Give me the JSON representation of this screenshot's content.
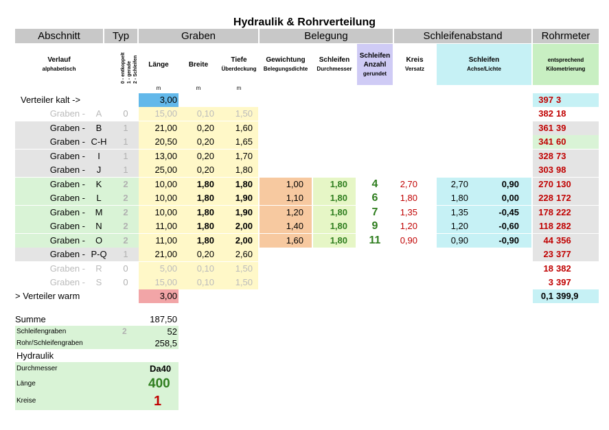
{
  "title": "Hydraulik & Rohrverteilung",
  "groups": {
    "abschnitt": "Abschnitt",
    "typ": "Typ",
    "graben": "Graben",
    "belegung": "Belegung",
    "schleifenabstand": "Schleifenabstand",
    "rohrmeter": "Rohrmeter"
  },
  "subheaders": {
    "verlauf": "Verlauf",
    "verlauf_sub": "alphabetisch",
    "typ_lines": [
      "0 - entkoppelt",
      "1 - gerade",
      "2 - Schleifen"
    ],
    "laenge": "Länge",
    "breite": "Breite",
    "tiefe": "Tiefe",
    "tiefe_sub": "Überdeckung",
    "gewichtung": "Gewichtung",
    "gewichtung_sub": "Belegungsdichte",
    "schleifen": "Schleifen",
    "schleifen_sub": "Durchmesser",
    "anzahl_1": "Schleifen",
    "anzahl_2": "Anzahl",
    "anzahl_sub": "gerundet",
    "kreis": "Kreis",
    "kreis_sub": "Versatz",
    "achse": "Schleifen",
    "achse_sub": "Achse/Lichte",
    "rohr_1": "entsprechend",
    "rohr_2": "Kilometrierung"
  },
  "units": {
    "laenge": "m",
    "breite": "m",
    "tiefe": "m"
  },
  "verteiler_kalt": {
    "label": "Verteiler kalt ->",
    "laenge": "3,00",
    "rohr_a": "397",
    "rohr_b": "3"
  },
  "rows": [
    {
      "label": "Graben -",
      "id": "A",
      "typ": "0",
      "laenge": "15,00",
      "breite": "0,10",
      "tiefe": "1,50",
      "gew": "",
      "schl": "",
      "anz": "",
      "kreis": "",
      "achse": "",
      "lichte": "",
      "rohr_a": "382",
      "rohr_b": "18"
    },
    {
      "label": "Graben -",
      "id": "B",
      "typ": "1",
      "laenge": "21,00",
      "breite": "0,20",
      "tiefe": "1,60",
      "gew": "",
      "schl": "",
      "anz": "",
      "kreis": "",
      "achse": "",
      "lichte": "",
      "rohr_a": "361",
      "rohr_b": "39"
    },
    {
      "label": "Graben -",
      "id": "C-H",
      "typ": "1",
      "laenge": "20,50",
      "breite": "0,20",
      "tiefe": "1,65",
      "gew": "",
      "schl": "",
      "anz": "",
      "kreis": "",
      "achse": "",
      "lichte": "",
      "rohr_a": "341",
      "rohr_b": "60"
    },
    {
      "label": "Graben -",
      "id": "I",
      "typ": "1",
      "laenge": "13,00",
      "breite": "0,20",
      "tiefe": "1,70",
      "gew": "",
      "schl": "",
      "anz": "",
      "kreis": "",
      "achse": "",
      "lichte": "",
      "rohr_a": "328",
      "rohr_b": "73"
    },
    {
      "label": "Graben -",
      "id": "J",
      "typ": "1",
      "laenge": "25,00",
      "breite": "0,20",
      "tiefe": "1,80",
      "gew": "",
      "schl": "",
      "anz": "",
      "kreis": "",
      "achse": "",
      "lichte": "",
      "rohr_a": "303",
      "rohr_b": "98"
    },
    {
      "label": "Graben -",
      "id": "K",
      "typ": "2",
      "laenge": "10,00",
      "breite": "1,80",
      "tiefe": "1,80",
      "gew": "1,00",
      "schl": "1,80",
      "anz": "4",
      "kreis": "2,70",
      "achse": "2,70",
      "lichte": "0,90",
      "rohr_a": "270",
      "rohr_b": "130"
    },
    {
      "label": "Graben -",
      "id": "L",
      "typ": "2",
      "laenge": "10,00",
      "breite": "1,80",
      "tiefe": "1,90",
      "gew": "1,10",
      "schl": "1,80",
      "anz": "6",
      "kreis": "1,80",
      "achse": "1,80",
      "lichte": "0,00",
      "rohr_a": "228",
      "rohr_b": "172"
    },
    {
      "label": "Graben -",
      "id": "M",
      "typ": "2",
      "laenge": "10,00",
      "breite": "1,80",
      "tiefe": "1,90",
      "gew": "1,20",
      "schl": "1,80",
      "anz": "7",
      "kreis": "1,35",
      "achse": "1,35",
      "lichte": "-0,45",
      "rohr_a": "178",
      "rohr_b": "222"
    },
    {
      "label": "Graben -",
      "id": "N",
      "typ": "2",
      "laenge": "11,00",
      "breite": "1,80",
      "tiefe": "2,00",
      "gew": "1,40",
      "schl": "1,80",
      "anz": "9",
      "kreis": "1,20",
      "achse": "1,20",
      "lichte": "-0,60",
      "rohr_a": "118",
      "rohr_b": "282"
    },
    {
      "label": "Graben -",
      "id": "O",
      "typ": "2",
      "laenge": "11,00",
      "breite": "1,80",
      "tiefe": "2,00",
      "gew": "1,60",
      "schl": "1,80",
      "anz": "11",
      "kreis": "0,90",
      "achse": "0,90",
      "lichte": "-0,90",
      "rohr_a": "44",
      "rohr_b": "356"
    },
    {
      "label": "Graben -",
      "id": "P-Q",
      "typ": "1",
      "laenge": "21,00",
      "breite": "0,20",
      "tiefe": "2,60",
      "gew": "",
      "schl": "",
      "anz": "",
      "kreis": "",
      "achse": "",
      "lichte": "",
      "rohr_a": "23",
      "rohr_b": "377"
    },
    {
      "label": "Graben -",
      "id": "R",
      "typ": "0",
      "laenge": "5,00",
      "breite": "0,10",
      "tiefe": "1,50",
      "gew": "",
      "schl": "",
      "anz": "",
      "kreis": "",
      "achse": "",
      "lichte": "",
      "rohr_a": "18",
      "rohr_b": "382"
    },
    {
      "label": "Graben -",
      "id": "S",
      "typ": "0",
      "laenge": "15,00",
      "breite": "0,10",
      "tiefe": "1,50",
      "gew": "",
      "schl": "",
      "anz": "",
      "kreis": "",
      "achse": "",
      "lichte": "",
      "rohr_a": "3",
      "rohr_b": "397"
    }
  ],
  "verteiler_warm": {
    "label": "> Verteiler warm",
    "laenge": "3,00",
    "rohr_a": "0,1",
    "rohr_b": "399,9"
  },
  "summary": {
    "summe_label": "Summe",
    "summe_value": "187,50",
    "schleifengraben_label": "Schleifengraben",
    "schleifengraben_typ": "2",
    "schleifengraben_value": "52",
    "rohr_label": "Rohr/Schleifengraben",
    "rohr_value": "258,5",
    "hydraulik_label": "Hydraulik",
    "durchmesser_label": "Durchmesser",
    "durchmesser_value": "Da40",
    "laenge_label": "Länge",
    "laenge_value": "400",
    "kreise_label": "Kreise",
    "kreise_value": "1"
  }
}
